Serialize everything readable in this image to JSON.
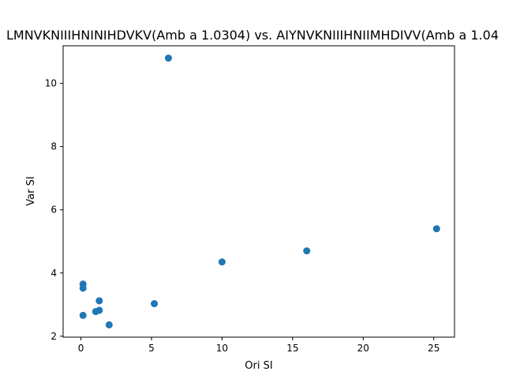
{
  "chart_data": {
    "type": "scatter",
    "title": "LMNVKNIIIHNINIHDVKV(Amb a 1.0304) vs. AIYNVKNIIIHNIIMHDIVV(Amb a 1.04",
    "xlabel": "Ori SI",
    "ylabel": "Var SI",
    "xlim": [
      -1.26,
      26.47
    ],
    "ylim": [
      1.97,
      11.19
    ],
    "xticks": [
      0,
      5,
      10,
      15,
      20,
      25
    ],
    "yticks": [
      2,
      4,
      6,
      8,
      10
    ],
    "grid": false,
    "color": "#1f77b4",
    "points": [
      {
        "x": 6.2,
        "y": 10.8
      },
      {
        "x": 25.2,
        "y": 5.4
      },
      {
        "x": 16.0,
        "y": 4.7
      },
      {
        "x": 10.0,
        "y": 4.35
      },
      {
        "x": 0.15,
        "y": 3.65
      },
      {
        "x": 0.15,
        "y": 3.52
      },
      {
        "x": 1.3,
        "y": 3.12
      },
      {
        "x": 5.2,
        "y": 3.03
      },
      {
        "x": 1.3,
        "y": 2.82
      },
      {
        "x": 1.05,
        "y": 2.78
      },
      {
        "x": 0.15,
        "y": 2.66
      },
      {
        "x": 2.0,
        "y": 2.36
      }
    ]
  }
}
